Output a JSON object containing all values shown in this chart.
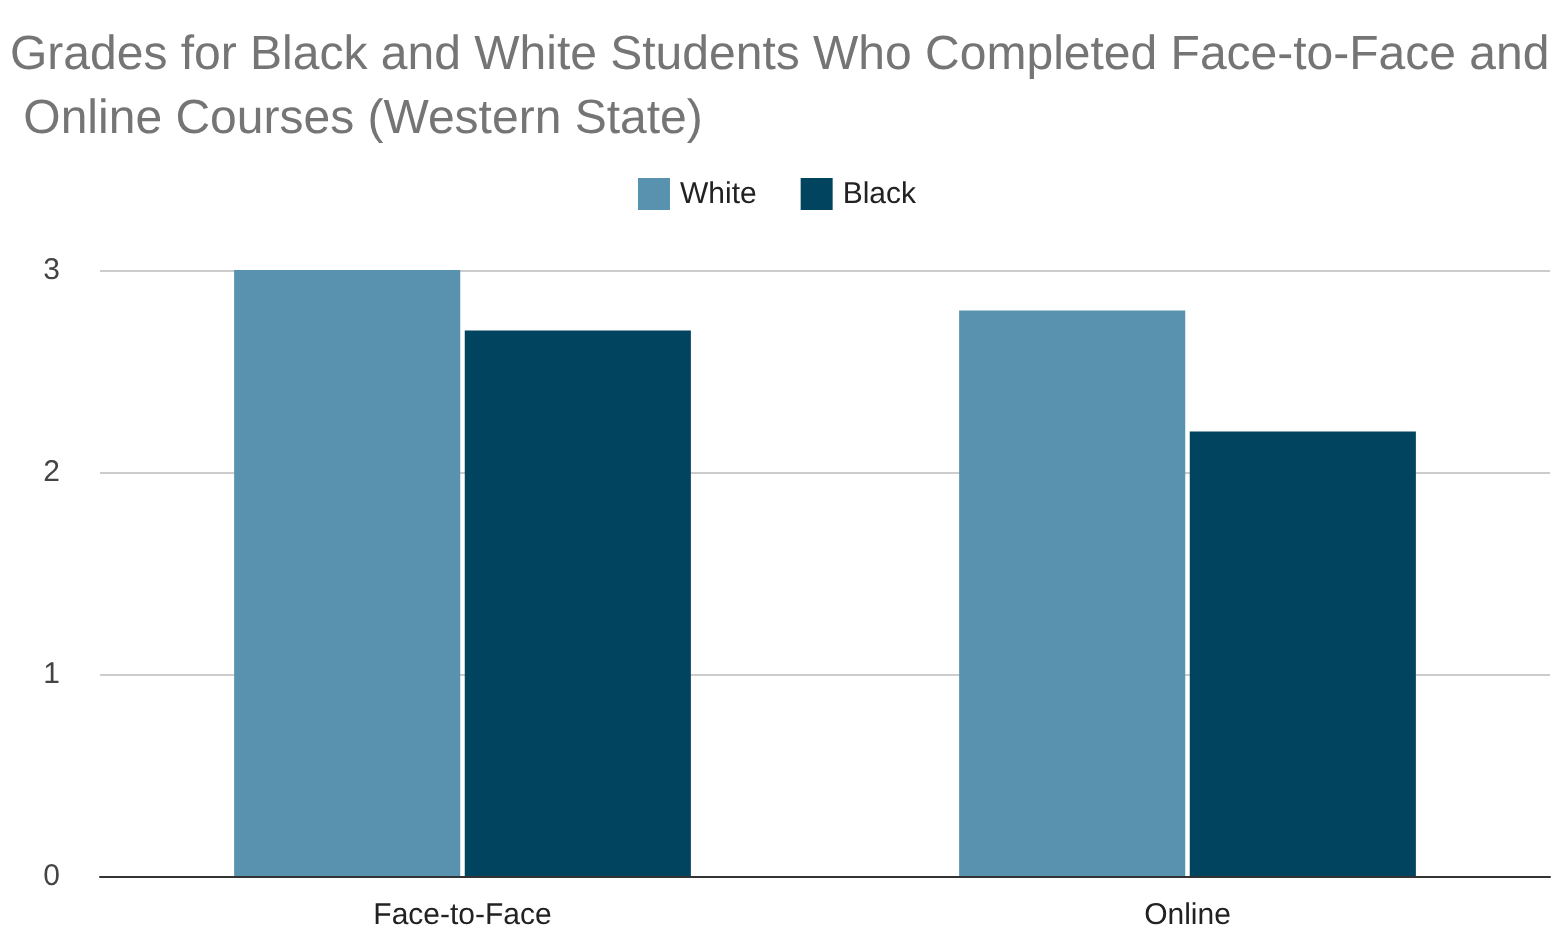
{
  "chart_data": {
    "type": "bar",
    "title": "Grades for Black and White Students Who Completed Face-to-Face and Online Courses (Western State)",
    "categories": [
      "Face-to-Face",
      "Online"
    ],
    "series": [
      {
        "name": "White",
        "color": "#5892ae",
        "values": [
          3.0,
          2.8
        ]
      },
      {
        "name": "Black",
        "color": "#01445f",
        "values": [
          2.7,
          2.2
        ]
      }
    ],
    "ylim": [
      0,
      3
    ],
    "yticks": [
      0,
      1,
      2,
      3
    ],
    "grid": "y",
    "legend": "top"
  }
}
